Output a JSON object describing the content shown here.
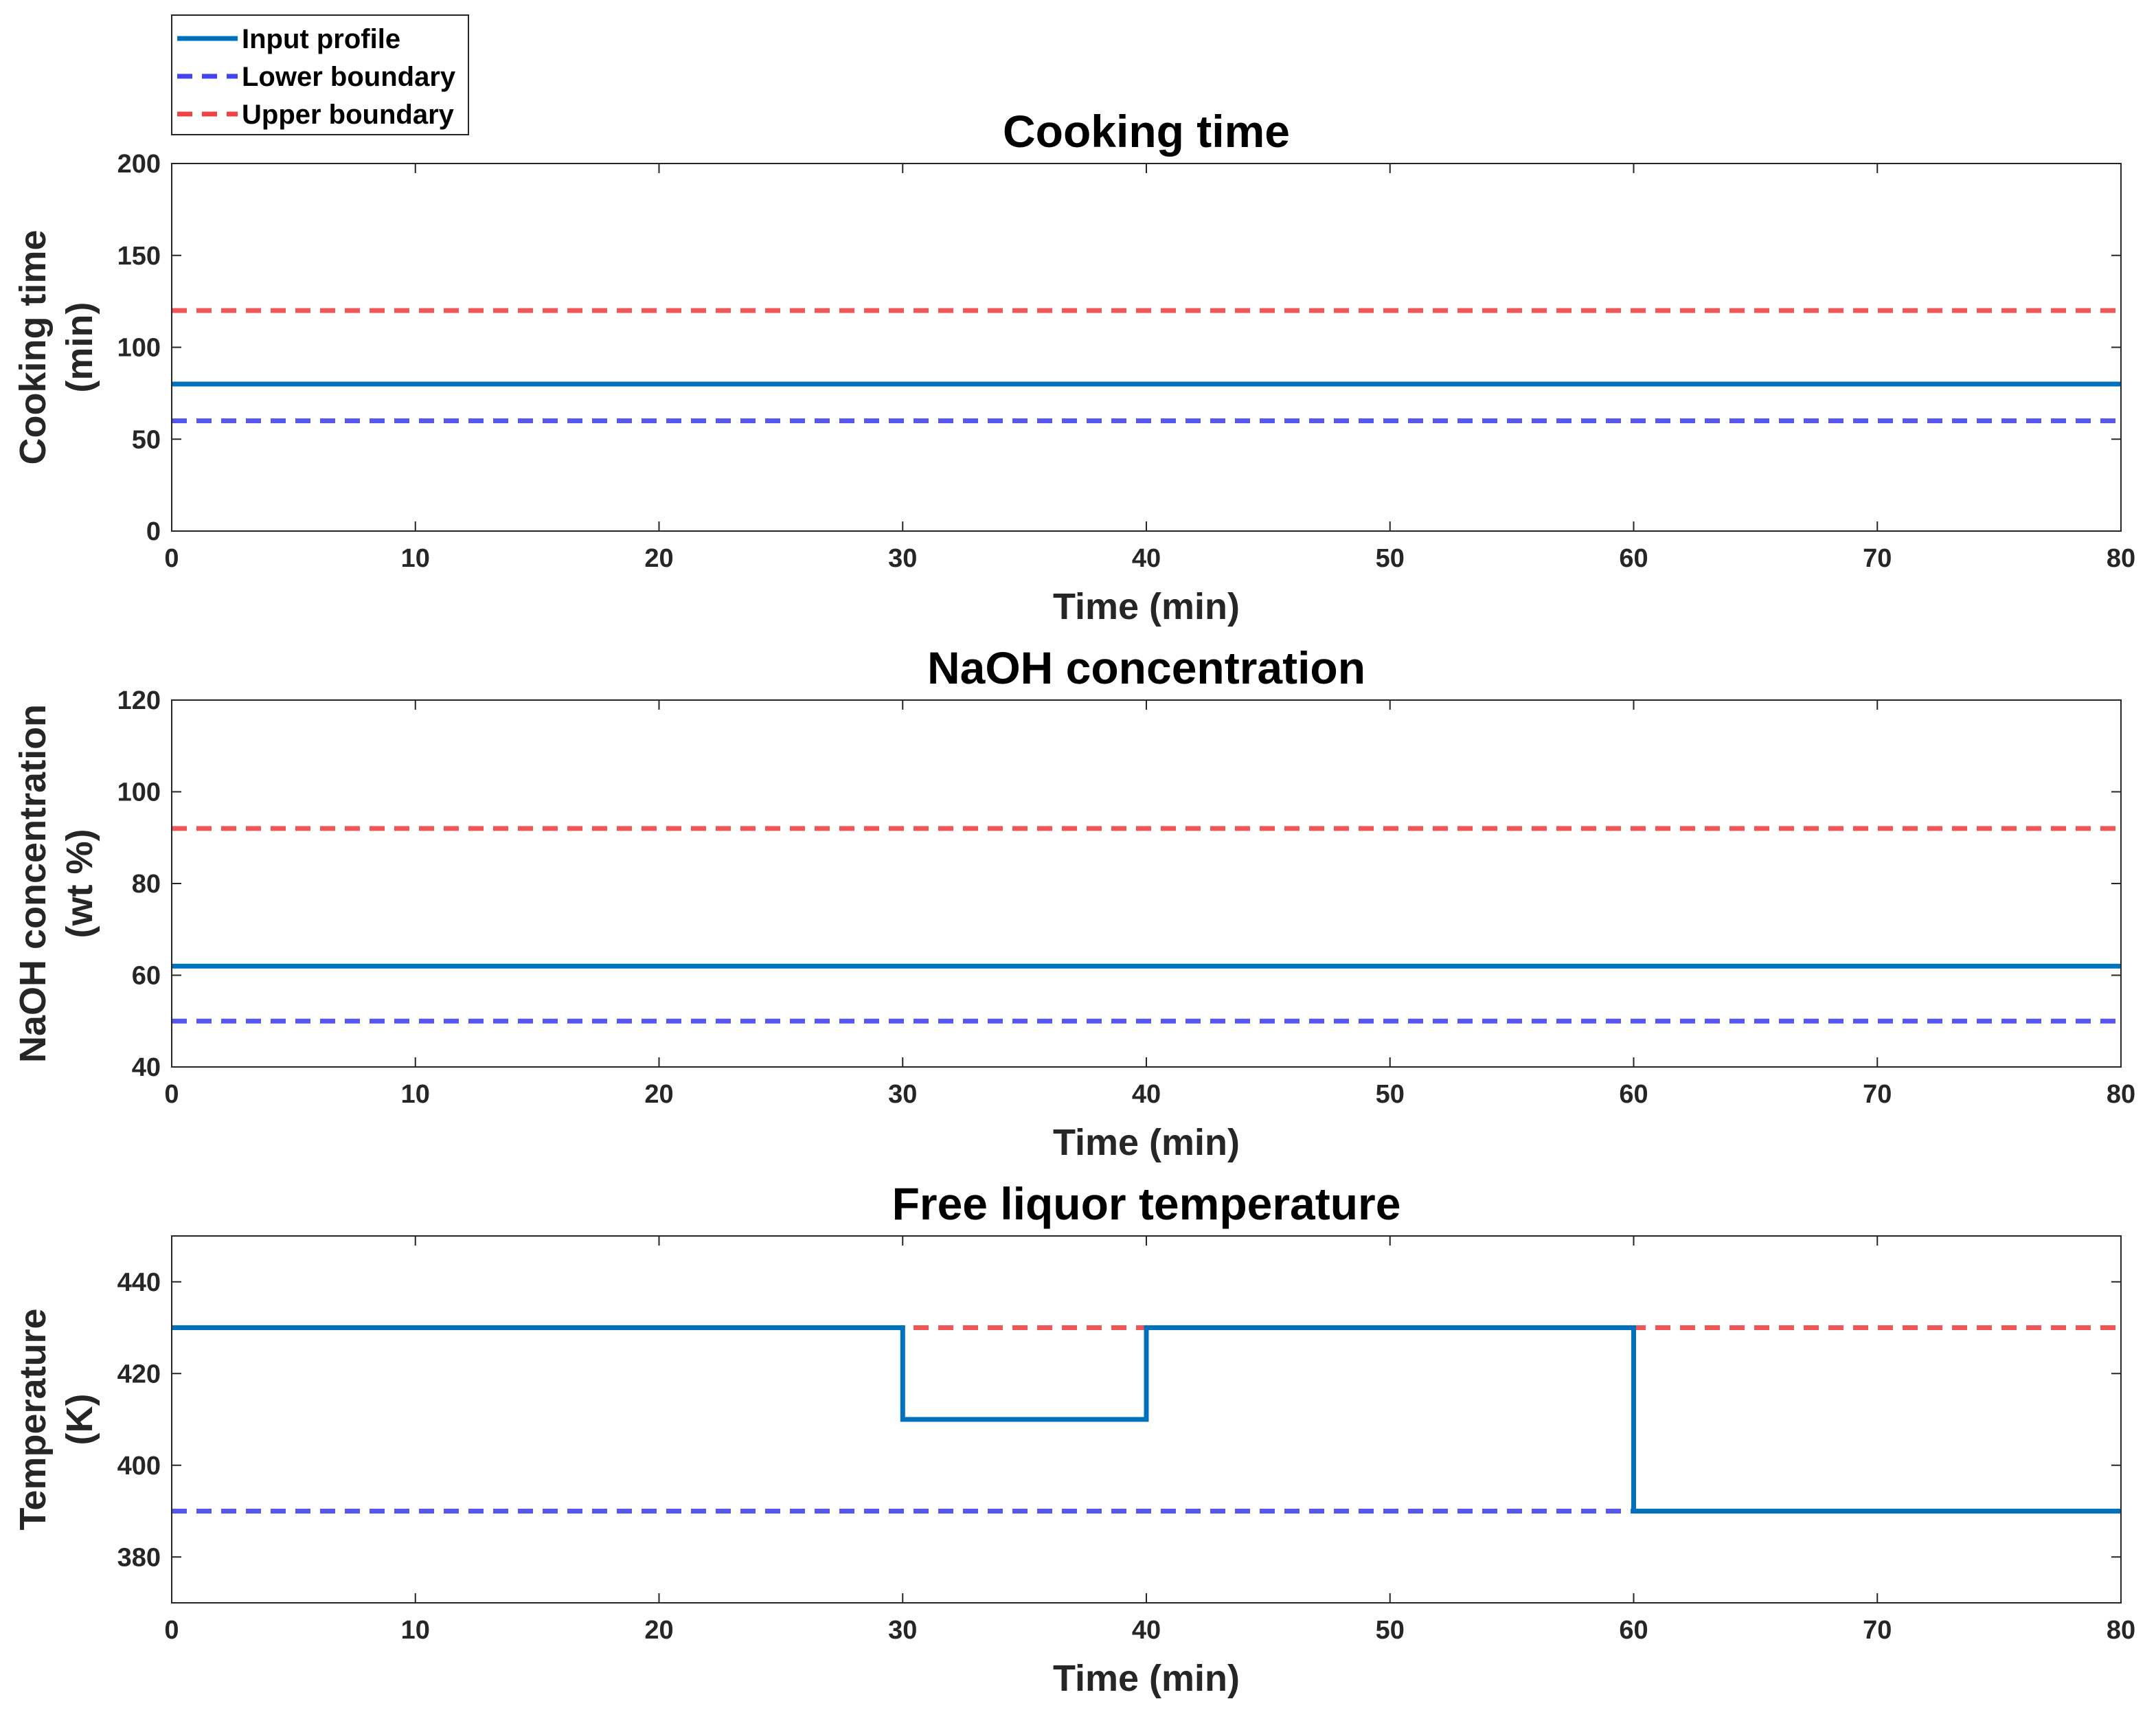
{
  "legend": {
    "entries": [
      {
        "label": "Input profile",
        "color": "#0072BD",
        "style": "solid"
      },
      {
        "label": "Lower boundary",
        "color": "#4444EE",
        "style": "dashed"
      },
      {
        "label": "Upper boundary",
        "color": "#EE4444",
        "style": "dashed"
      }
    ]
  },
  "chart_data": [
    {
      "type": "line",
      "title": "Cooking time",
      "xlabel": "Time (min)",
      "ylabel": [
        "Cooking time",
        "(min)"
      ],
      "xlim": [
        0,
        80
      ],
      "ylim": [
        0,
        200
      ],
      "xticks": [
        0,
        10,
        20,
        30,
        40,
        50,
        60,
        70,
        80
      ],
      "yticks": [
        0,
        50,
        100,
        150,
        200
      ],
      "series": [
        {
          "name": "Input profile",
          "x": [
            0,
            80
          ],
          "y": [
            80,
            80
          ]
        },
        {
          "name": "Lower boundary",
          "x": [
            0,
            80
          ],
          "y": [
            60,
            60
          ]
        },
        {
          "name": "Upper boundary",
          "x": [
            0,
            80
          ],
          "y": [
            120,
            120
          ]
        }
      ]
    },
    {
      "type": "line",
      "title": "NaOH concentration",
      "xlabel": "Time (min)",
      "ylabel": [
        "NaOH concentration",
        "(wt %)"
      ],
      "xlim": [
        0,
        80
      ],
      "ylim": [
        40,
        120
      ],
      "xticks": [
        0,
        10,
        20,
        30,
        40,
        50,
        60,
        70,
        80
      ],
      "yticks": [
        40,
        60,
        80,
        100,
        120
      ],
      "series": [
        {
          "name": "Input profile",
          "x": [
            0,
            80
          ],
          "y": [
            62,
            62
          ]
        },
        {
          "name": "Lower boundary",
          "x": [
            0,
            80
          ],
          "y": [
            50,
            50
          ]
        },
        {
          "name": "Upper boundary",
          "x": [
            0,
            80
          ],
          "y": [
            92,
            92
          ]
        }
      ]
    },
    {
      "type": "line",
      "title": "Free liquor temperature",
      "xlabel": "Time (min)",
      "ylabel": [
        "Temperature",
        "(K)"
      ],
      "xlim": [
        0,
        80
      ],
      "ylim": [
        370,
        450
      ],
      "xticks": [
        0,
        10,
        20,
        30,
        40,
        50,
        60,
        70,
        80
      ],
      "yticks": [
        380,
        400,
        420,
        440
      ],
      "series": [
        {
          "name": "Input profile",
          "x": [
            0,
            30,
            30,
            40,
            40,
            60,
            60,
            80
          ],
          "y": [
            430,
            430,
            410,
            410,
            430,
            430,
            390,
            390
          ]
        },
        {
          "name": "Lower boundary",
          "x": [
            0,
            80
          ],
          "y": [
            390,
            390
          ]
        },
        {
          "name": "Upper boundary",
          "x": [
            0,
            80
          ],
          "y": [
            430,
            430
          ]
        }
      ]
    }
  ]
}
